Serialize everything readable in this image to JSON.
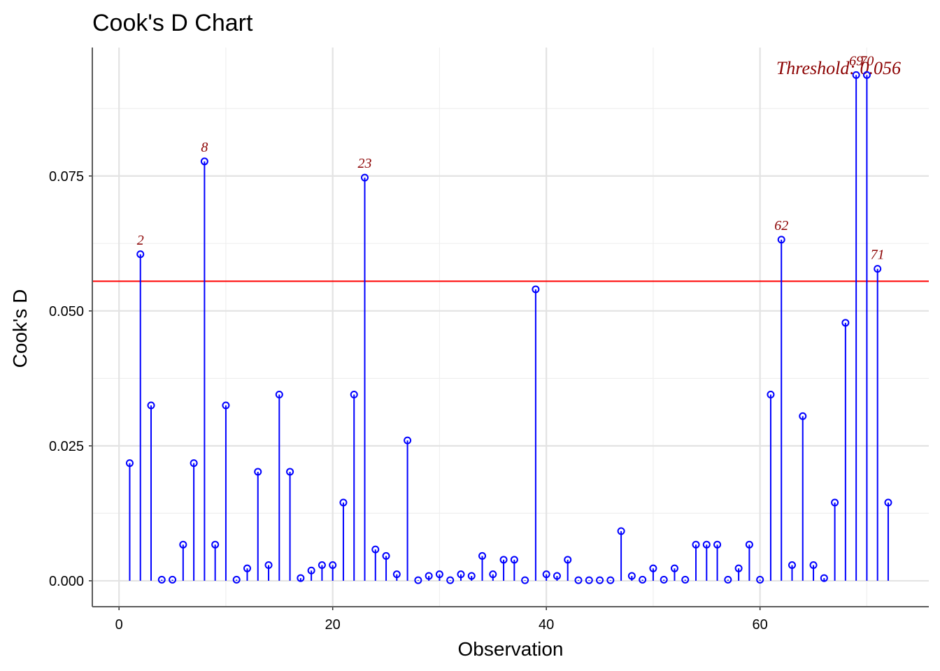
{
  "chart_data": {
    "type": "scatter",
    "title": "Cook's D Chart",
    "xlabel": "Observation",
    "ylabel": "Cook's D",
    "xlim": [
      -2.5,
      75.8
    ],
    "ylim": [
      -0.0048,
      0.0988
    ],
    "x_ticks": [
      {
        "value": 0,
        "label": "0"
      },
      {
        "value": 20,
        "label": "20"
      },
      {
        "value": 40,
        "label": "40"
      },
      {
        "value": 60,
        "label": "60"
      }
    ],
    "y_ticks": [
      {
        "value": 0.0,
        "label": "0.000"
      },
      {
        "value": 0.025,
        "label": "0.025"
      },
      {
        "value": 0.05,
        "label": "0.050"
      },
      {
        "value": 0.075,
        "label": "0.075"
      }
    ],
    "grid": true,
    "threshold": {
      "value": 0.0555,
      "label": "Threshold: 0.056",
      "color": "#ff0000",
      "label_color": "#8b0000"
    },
    "series": [
      {
        "color": "#0000ff",
        "x": [
          1,
          2,
          3,
          4,
          5,
          6,
          7,
          8,
          9,
          10,
          11,
          12,
          13,
          14,
          15,
          16,
          17,
          18,
          19,
          20,
          21,
          22,
          23,
          24,
          25,
          26,
          27,
          28,
          29,
          30,
          31,
          32,
          33,
          34,
          35,
          36,
          37,
          38,
          39,
          40,
          41,
          42,
          43,
          44,
          45,
          46,
          47,
          48,
          49,
          50,
          51,
          52,
          53,
          54,
          55,
          56,
          57,
          58,
          59,
          60,
          61,
          62,
          63,
          64,
          65,
          66,
          67,
          68,
          69,
          70,
          71,
          72
        ],
        "y": [
          0.0218,
          0.0605,
          0.0325,
          0.0002,
          0.0002,
          0.0067,
          0.0218,
          0.0777,
          0.0067,
          0.0325,
          0.0002,
          0.0023,
          0.0202,
          0.0029,
          0.0345,
          0.0202,
          0.0005,
          0.0019,
          0.0029,
          0.0029,
          0.0145,
          0.0345,
          0.0747,
          0.0058,
          0.0046,
          0.0012,
          0.026,
          0.0001,
          0.0009,
          0.0012,
          0.0001,
          0.0012,
          0.0009,
          0.0046,
          0.0012,
          0.0039,
          0.0039,
          0.0001,
          0.054,
          0.0012,
          0.0009,
          0.0039,
          0.0001,
          0.0001,
          0.0001,
          0.0001,
          0.0092,
          0.0009,
          0.0002,
          0.0023,
          0.0002,
          0.0023,
          0.0002,
          0.0067,
          0.0067,
          0.0067,
          0.0002,
          0.0023,
          0.0067,
          0.0002,
          0.0345,
          0.0632,
          0.0029,
          0.0305,
          0.0029,
          0.0005,
          0.0145,
          0.0478,
          0.0937,
          0.0937,
          0.0578,
          0.0145
        ]
      }
    ],
    "annotations": [
      {
        "x": 2,
        "y": 0.0605,
        "text": "2"
      },
      {
        "x": 8,
        "y": 0.0777,
        "text": "8"
      },
      {
        "x": 23,
        "y": 0.0747,
        "text": "23"
      },
      {
        "x": 62,
        "y": 0.0632,
        "text": "62"
      },
      {
        "x": 69,
        "y": 0.0937,
        "text": "69"
      },
      {
        "x": 70,
        "y": 0.0937,
        "text": "70"
      },
      {
        "x": 71,
        "y": 0.0578,
        "text": "71"
      }
    ],
    "annotation_color": "#8b0000"
  }
}
